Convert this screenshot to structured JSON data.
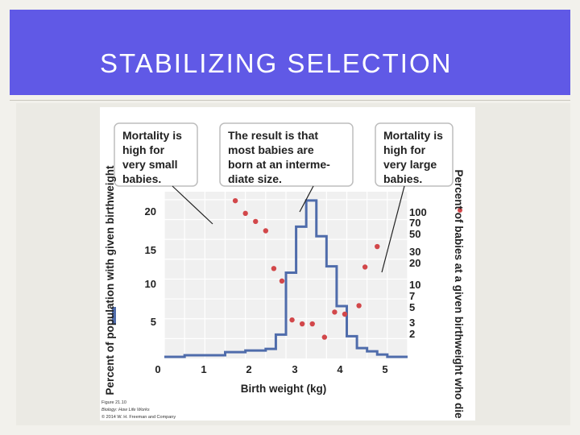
{
  "slide": {
    "title": "STABILIZING SELECTION"
  },
  "figure": {
    "credit_lines": [
      "Figure 21.10",
      "Biology: How Life Works",
      "© 2014 W. H. Freeman and Company"
    ]
  },
  "chart_data": {
    "type": "line",
    "title": "",
    "xlabel": "Birth weight (kg)",
    "ylabel": "Percent of population with given birthweight",
    "y2label": "Percent of babies at a given birthweight who die",
    "xlim": [
      -0.5,
      5.5
    ],
    "ylim": [
      0,
      21
    ],
    "x_ticks": [
      "0",
      "1",
      "2",
      "3",
      "4",
      "5"
    ],
    "y_ticks": [
      "5",
      "10",
      "15",
      "20"
    ],
    "y2_ticks": [
      "100",
      "70",
      "50",
      "30",
      "20",
      "10",
      "7",
      "5",
      "3",
      "2"
    ],
    "y2_scale": "log",
    "y2_range": [
      1,
      100
    ],
    "grid": true,
    "series": [
      {
        "name": "Percent of population with given birthweight",
        "kind": "step",
        "color": "#4f6cab",
        "x": [
          -0.5,
          0,
          0.5,
          1,
          1.5,
          2,
          2.25,
          2.5,
          2.75,
          3,
          3.25,
          3.5,
          3.75,
          4,
          4.25,
          4.5,
          4.75,
          5,
          5.5
        ],
        "y": [
          0.2,
          0.4,
          0.4,
          0.8,
          1.0,
          1.2,
          3.0,
          10.8,
          16.6,
          19.9,
          15.4,
          11.6,
          6.6,
          2.8,
          1.3,
          0.9,
          0.5,
          0.2,
          0.2
        ]
      },
      {
        "name": "Percent of babies at a given birthweight who die",
        "kind": "scatter",
        "color": "#d2474a",
        "x": [
          1.25,
          1.5,
          1.75,
          2.0,
          2.2,
          2.4,
          2.65,
          2.9,
          3.15,
          3.45,
          3.7,
          3.95,
          4.3,
          4.45,
          4.75
        ],
        "y": [
          78,
          55,
          44,
          34,
          12,
          8.5,
          2.9,
          2.6,
          2.6,
          1.8,
          3.6,
          3.4,
          4.3,
          12.5,
          22
        ]
      }
    ],
    "annotations": [
      {
        "text": [
          "Mortality is",
          "high for",
          "very small",
          "babies."
        ],
        "points_to_x": 1.25
      },
      {
        "text": [
          "The result is that",
          "most babies are",
          "born at an interme-",
          "diate size."
        ],
        "points_to_x": 3.0
      },
      {
        "text": [
          "Mortality is",
          "high for",
          "very large",
          "babies."
        ],
        "points_to_x": 4.75
      }
    ]
  }
}
